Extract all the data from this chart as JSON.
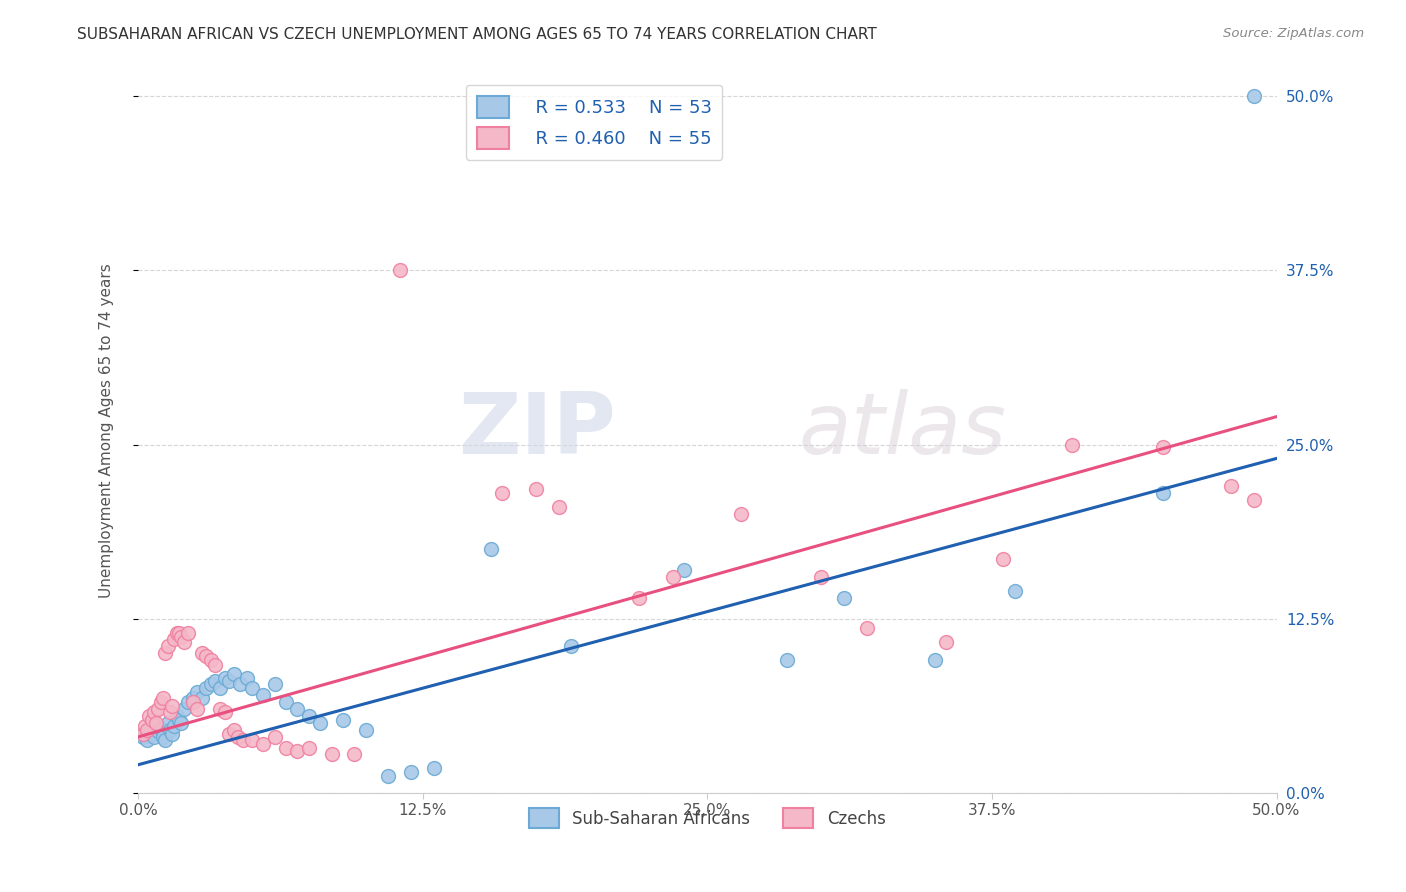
{
  "title": "SUBSAHARAN AFRICAN VS CZECH UNEMPLOYMENT AMONG AGES 65 TO 74 YEARS CORRELATION CHART",
  "source": "Source: ZipAtlas.com",
  "ylabel": "Unemployment Among Ages 65 to 74 years",
  "xlabel_ticks": [
    "0.0%",
    "12.5%",
    "25.0%",
    "37.5%",
    "50.0%"
  ],
  "ylabel_ticks_right": [
    "0.0%",
    "12.5%",
    "25.0%",
    "37.5%",
    "50.0%"
  ],
  "xlim": [
    0.0,
    0.5
  ],
  "ylim": [
    0.0,
    0.52
  ],
  "blue_color": "#a8c8e8",
  "pink_color": "#f4b8c8",
  "blue_edge_color": "#6aaad4",
  "pink_edge_color": "#f080a0",
  "blue_line_color": "#2060b0",
  "pink_line_color": "#e85080",
  "legend_r_blue": "R = 0.533",
  "legend_n_blue": "N = 53",
  "legend_r_pink": "R = 0.460",
  "legend_n_pink": "N = 55",
  "watermark_zip": "ZIP",
  "watermark_atlas": "atlas",
  "blue_scatter": [
    [
      0.002,
      0.04
    ],
    [
      0.003,
      0.042
    ],
    [
      0.004,
      0.038
    ],
    [
      0.005,
      0.045
    ],
    [
      0.006,
      0.042
    ],
    [
      0.007,
      0.04
    ],
    [
      0.008,
      0.048
    ],
    [
      0.009,
      0.044
    ],
    [
      0.01,
      0.046
    ],
    [
      0.011,
      0.04
    ],
    [
      0.012,
      0.038
    ],
    [
      0.013,
      0.05
    ],
    [
      0.014,
      0.045
    ],
    [
      0.015,
      0.042
    ],
    [
      0.016,
      0.048
    ],
    [
      0.017,
      0.055
    ],
    [
      0.018,
      0.052
    ],
    [
      0.019,
      0.05
    ],
    [
      0.02,
      0.06
    ],
    [
      0.022,
      0.065
    ],
    [
      0.024,
      0.068
    ],
    [
      0.026,
      0.072
    ],
    [
      0.028,
      0.068
    ],
    [
      0.03,
      0.075
    ],
    [
      0.032,
      0.078
    ],
    [
      0.034,
      0.08
    ],
    [
      0.036,
      0.075
    ],
    [
      0.038,
      0.082
    ],
    [
      0.04,
      0.08
    ],
    [
      0.042,
      0.085
    ],
    [
      0.045,
      0.078
    ],
    [
      0.048,
      0.082
    ],
    [
      0.05,
      0.075
    ],
    [
      0.055,
      0.07
    ],
    [
      0.06,
      0.078
    ],
    [
      0.065,
      0.065
    ],
    [
      0.07,
      0.06
    ],
    [
      0.075,
      0.055
    ],
    [
      0.08,
      0.05
    ],
    [
      0.09,
      0.052
    ],
    [
      0.1,
      0.045
    ],
    [
      0.11,
      0.012
    ],
    [
      0.12,
      0.015
    ],
    [
      0.13,
      0.018
    ],
    [
      0.155,
      0.175
    ],
    [
      0.19,
      0.105
    ],
    [
      0.24,
      0.16
    ],
    [
      0.285,
      0.095
    ],
    [
      0.31,
      0.14
    ],
    [
      0.35,
      0.095
    ],
    [
      0.385,
      0.145
    ],
    [
      0.45,
      0.215
    ],
    [
      0.49,
      0.5
    ]
  ],
  "pink_scatter": [
    [
      0.002,
      0.042
    ],
    [
      0.003,
      0.048
    ],
    [
      0.004,
      0.045
    ],
    [
      0.005,
      0.055
    ],
    [
      0.006,
      0.052
    ],
    [
      0.007,
      0.058
    ],
    [
      0.008,
      0.05
    ],
    [
      0.009,
      0.06
    ],
    [
      0.01,
      0.065
    ],
    [
      0.011,
      0.068
    ],
    [
      0.012,
      0.1
    ],
    [
      0.013,
      0.105
    ],
    [
      0.014,
      0.058
    ],
    [
      0.015,
      0.062
    ],
    [
      0.016,
      0.11
    ],
    [
      0.017,
      0.115
    ],
    [
      0.018,
      0.115
    ],
    [
      0.019,
      0.112
    ],
    [
      0.02,
      0.108
    ],
    [
      0.022,
      0.115
    ],
    [
      0.024,
      0.065
    ],
    [
      0.026,
      0.06
    ],
    [
      0.028,
      0.1
    ],
    [
      0.03,
      0.098
    ],
    [
      0.032,
      0.095
    ],
    [
      0.034,
      0.092
    ],
    [
      0.036,
      0.06
    ],
    [
      0.038,
      0.058
    ],
    [
      0.04,
      0.042
    ],
    [
      0.042,
      0.045
    ],
    [
      0.044,
      0.04
    ],
    [
      0.046,
      0.038
    ],
    [
      0.05,
      0.038
    ],
    [
      0.055,
      0.035
    ],
    [
      0.06,
      0.04
    ],
    [
      0.065,
      0.032
    ],
    [
      0.07,
      0.03
    ],
    [
      0.075,
      0.032
    ],
    [
      0.085,
      0.028
    ],
    [
      0.095,
      0.028
    ],
    [
      0.115,
      0.375
    ],
    [
      0.16,
      0.215
    ],
    [
      0.175,
      0.218
    ],
    [
      0.185,
      0.205
    ],
    [
      0.22,
      0.14
    ],
    [
      0.235,
      0.155
    ],
    [
      0.265,
      0.2
    ],
    [
      0.3,
      0.155
    ],
    [
      0.32,
      0.118
    ],
    [
      0.355,
      0.108
    ],
    [
      0.38,
      0.168
    ],
    [
      0.41,
      0.25
    ],
    [
      0.45,
      0.248
    ],
    [
      0.48,
      0.22
    ],
    [
      0.49,
      0.21
    ]
  ],
  "blue_slope": 0.44,
  "blue_intercept": 0.02,
  "pink_slope": 0.46,
  "pink_intercept": 0.04
}
